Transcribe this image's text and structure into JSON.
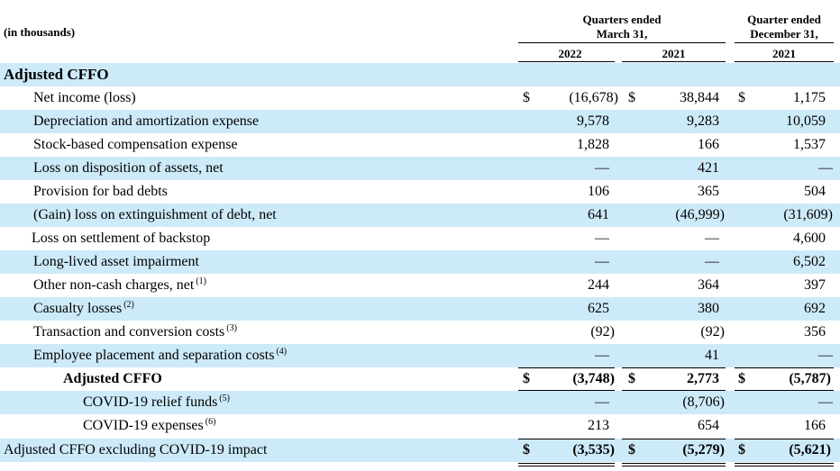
{
  "header": {
    "units": "(in thousands)",
    "group1_line1": "Quarters ended",
    "group1_line2": "March 31,",
    "group2_line1": "Quarter ended",
    "group2_line2": "December 31,",
    "col1_year": "2022",
    "col2_year": "2021",
    "col3_year": "2021"
  },
  "section_title": "Adjusted CFFO",
  "rows": [
    {
      "label": "Net income (loss)",
      "note": "",
      "dollar": "$",
      "c1": "(16,678)",
      "c2": "38,844",
      "c3": "1,175"
    },
    {
      "label": "Depreciation and amortization expense",
      "note": "",
      "dollar": "",
      "c1": "9,578",
      "c2": "9,283",
      "c3": "10,059"
    },
    {
      "label": "Stock-based compensation expense",
      "note": "",
      "dollar": "",
      "c1": "1,828",
      "c2": "166",
      "c3": "1,537"
    },
    {
      "label": "Loss on disposition of assets, net",
      "note": "",
      "dollar": "",
      "c1": "—",
      "c2": "421",
      "c3": "—"
    },
    {
      "label": "Provision for bad debts",
      "note": "",
      "dollar": "",
      "c1": "106",
      "c2": "365",
      "c3": "504"
    },
    {
      "label": "(Gain) loss on extinguishment of debt, net",
      "note": "",
      "dollar": "",
      "c1": "641",
      "c2": "(46,999)",
      "c3": "(31,609)"
    },
    {
      "label": "Loss on settlement of backstop",
      "note": "",
      "dollar": "",
      "c1": "—",
      "c2": "—",
      "c3": "4,600"
    },
    {
      "label": "Long-lived asset impairment",
      "note": "",
      "dollar": "",
      "c1": "—",
      "c2": "—",
      "c3": "6,502"
    },
    {
      "label": "Other non-cash charges, net",
      "note": "(1)",
      "dollar": "",
      "c1": "244",
      "c2": "364",
      "c3": "397"
    },
    {
      "label": "Casualty losses",
      "note": "(2)",
      "dollar": "",
      "c1": "625",
      "c2": "380",
      "c3": "692"
    },
    {
      "label": "Transaction and conversion costs",
      "note": "(3)",
      "dollar": "",
      "c1": "(92)",
      "c2": "(92)",
      "c3": "356"
    },
    {
      "label": "Employee placement and separation costs",
      "note": "(4)",
      "dollar": "",
      "c1": "—",
      "c2": "41",
      "c3": "—"
    },
    {
      "label": "Adjusted CFFO",
      "note": "",
      "dollar": "$",
      "c1": "(3,748)",
      "c2": "2,773",
      "c3": "(5,787)"
    },
    {
      "label": "COVID-19 relief funds",
      "note": "(5)",
      "dollar": "",
      "c1": "—",
      "c2": "(8,706)",
      "c3": "—"
    },
    {
      "label": "COVID-19 expenses",
      "note": "(6)",
      "dollar": "",
      "c1": "213",
      "c2": "654",
      "c3": "166"
    },
    {
      "label": "Adjusted CFFO excluding COVID-19 impact",
      "note": "",
      "dollar": "$",
      "c1": "(3,535)",
      "c2": "(5,279)",
      "c3": "(5,621)"
    }
  ]
}
